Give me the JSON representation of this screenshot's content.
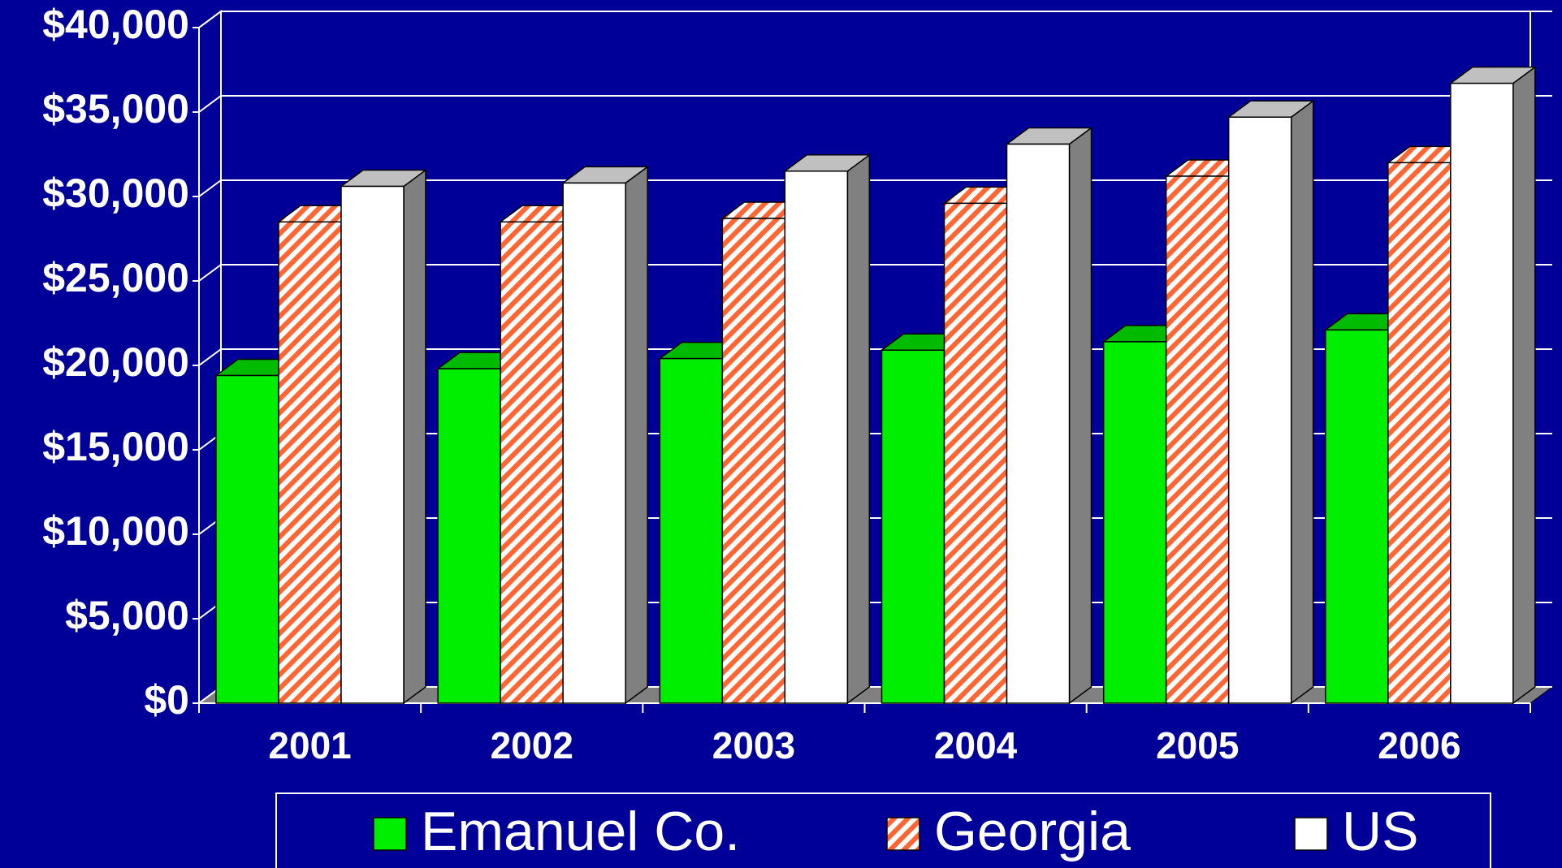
{
  "chart_data": {
    "type": "bar3d",
    "categories": [
      "2001",
      "2002",
      "2003",
      "2004",
      "2005",
      "2006"
    ],
    "series": [
      {
        "name": "Emanuel Co.",
        "color": "#00ee00",
        "values": [
          19400,
          19800,
          20400,
          20900,
          21400,
          22100
        ]
      },
      {
        "name": "Georgia",
        "color": "#ff6633",
        "values": [
          28500,
          28500,
          28700,
          29600,
          31200,
          32000
        ]
      },
      {
        "name": "US",
        "color": "#ffffff",
        "values": [
          30600,
          30800,
          31500,
          33100,
          34700,
          36700
        ]
      }
    ],
    "ylim": [
      0,
      40000
    ],
    "yticks": [
      {
        "value": 0,
        "label": "$0"
      },
      {
        "value": 5000,
        "label": "$5,000"
      },
      {
        "value": 10000,
        "label": "$10,000"
      },
      {
        "value": 15000,
        "label": "$15,000"
      },
      {
        "value": 20000,
        "label": "$20,000"
      },
      {
        "value": 25000,
        "label": "$25,000"
      },
      {
        "value": 30000,
        "label": "$30,000"
      },
      {
        "value": 35000,
        "label": "$35,000"
      },
      {
        "value": 40000,
        "label": "$40,000"
      }
    ],
    "grid": true
  }
}
